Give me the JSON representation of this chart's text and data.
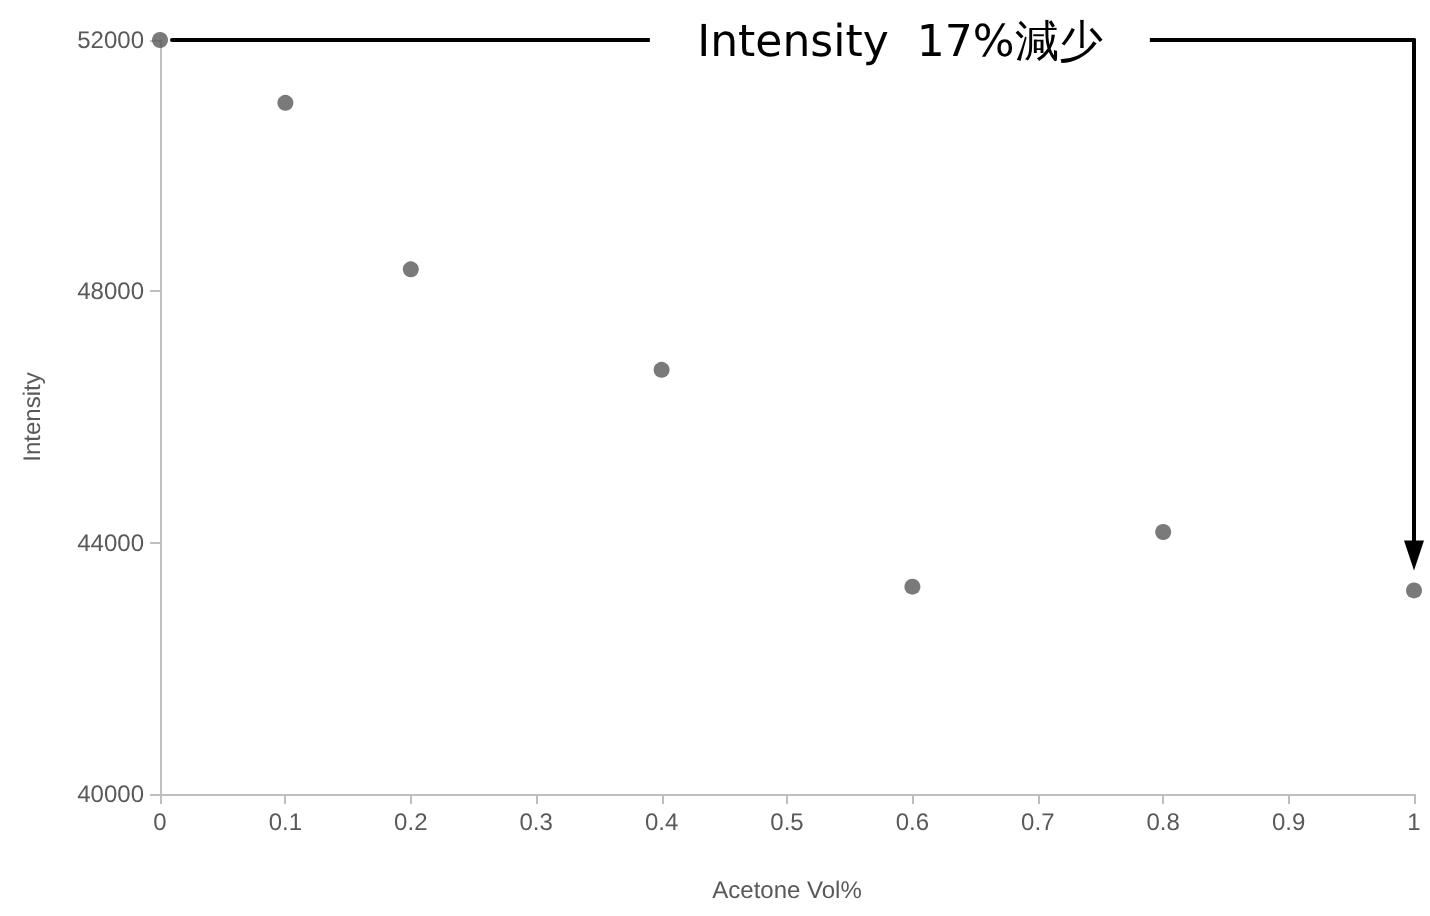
{
  "chart_data": {
    "type": "scatter",
    "xlabel": "Acetone Vol%",
    "ylabel": "Intensity",
    "x": [
      0,
      0.1,
      0.2,
      0.4,
      0.6,
      0.8,
      1
    ],
    "values": [
      52000,
      51000,
      48350,
      46750,
      43300,
      44170,
      43240
    ],
    "color": "#595959",
    "marker": "circle",
    "xlim": [
      0,
      1
    ],
    "xticks": [
      0,
      0.1,
      0.2,
      0.3,
      0.4,
      0.5,
      0.6,
      0.7,
      0.8,
      0.9,
      1
    ],
    "ylim": [
      40000,
      52000
    ],
    "yticks": [
      40000,
      44000,
      48000,
      52000
    ],
    "annotations": [
      "Intensity  17%減少"
    ]
  }
}
